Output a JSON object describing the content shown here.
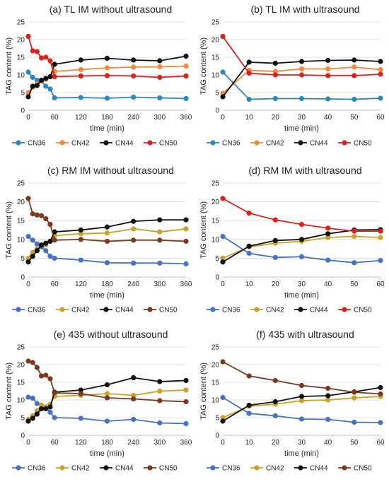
{
  "chart_data": [
    {
      "type": "line",
      "title": "(a) TL IM without ultrasound",
      "xlabel": "time (min)",
      "ylabel": "TAG content (%)",
      "xlim": [
        0,
        360
      ],
      "ylim": [
        0,
        25
      ],
      "xticks": [
        0,
        60,
        120,
        180,
        240,
        300,
        360
      ],
      "yticks": [
        0,
        5,
        10,
        15,
        20,
        25
      ],
      "grid": "horizontal",
      "legend": "bottom",
      "series": [
        {
          "name": "CN36",
          "color": "#2e86c1",
          "x": [
            0,
            10,
            20,
            30,
            40,
            50,
            60,
            120,
            180,
            240,
            300,
            360
          ],
          "y": [
            10.8,
            9.3,
            8.5,
            8.2,
            6.8,
            6.0,
            3.5,
            3.6,
            3.4,
            3.7,
            3.5,
            3.3
          ]
        },
        {
          "name": "CN42",
          "color": "#f2883a",
          "x": [
            0,
            10,
            20,
            30,
            40,
            50,
            60,
            120,
            180,
            240,
            300,
            360
          ],
          "y": [
            5.0,
            6.5,
            7.5,
            8.2,
            8.8,
            9.4,
            11.0,
            11.5,
            12.0,
            12.2,
            12.3,
            12.5
          ]
        },
        {
          "name": "CN44",
          "color": "#111111",
          "x": [
            0,
            10,
            20,
            30,
            40,
            50,
            60,
            120,
            180,
            240,
            300,
            360
          ],
          "y": [
            3.8,
            6.8,
            7.0,
            8.5,
            9.0,
            9.5,
            13.0,
            14.2,
            14.7,
            14.2,
            14.0,
            15.3
          ]
        },
        {
          "name": "CN50",
          "color": "#d9211e",
          "x": [
            0,
            10,
            20,
            30,
            40,
            50,
            60,
            120,
            180,
            240,
            300,
            360
          ],
          "y": [
            20.9,
            16.8,
            16.6,
            14.8,
            15.0,
            14.0,
            9.5,
            9.7,
            9.8,
            9.7,
            9.3,
            9.7
          ]
        }
      ]
    },
    {
      "type": "line",
      "title": "(b) TL IM with ultrasound",
      "xlabel": "time (min)",
      "ylabel": "TAG content (%)",
      "xlim": [
        0,
        60
      ],
      "ylim": [
        0,
        25
      ],
      "xticks": [
        0,
        10,
        20,
        30,
        40,
        50,
        60
      ],
      "yticks": [
        0,
        5,
        10,
        15,
        20,
        25
      ],
      "grid": "horizontal",
      "legend": "bottom",
      "series": [
        {
          "name": "CN36",
          "color": "#2e86c1",
          "x": [
            0,
            10,
            20,
            30,
            40,
            50,
            60
          ],
          "y": [
            10.8,
            3.1,
            3.3,
            3.3,
            3.2,
            3.1,
            3.4
          ]
        },
        {
          "name": "CN42",
          "color": "#f2883a",
          "x": [
            0,
            10,
            20,
            30,
            40,
            50,
            60
          ],
          "y": [
            4.8,
            11.3,
            11.0,
            11.7,
            11.7,
            12.2,
            11.5
          ]
        },
        {
          "name": "CN44",
          "color": "#111111",
          "x": [
            0,
            10,
            20,
            30,
            40,
            50,
            60
          ],
          "y": [
            3.8,
            13.6,
            13.3,
            13.8,
            14.1,
            14.2,
            13.8
          ]
        },
        {
          "name": "CN50",
          "color": "#d9211e",
          "x": [
            0,
            10,
            20,
            30,
            40,
            50,
            60
          ],
          "y": [
            20.9,
            10.5,
            10.0,
            10.0,
            9.8,
            9.8,
            10.2
          ]
        }
      ]
    },
    {
      "type": "line",
      "title": "(c) RM IM without ultrasound",
      "xlabel": "time (min)",
      "ylabel": "TAG content (%)",
      "xlim": [
        0,
        360
      ],
      "ylim": [
        0,
        25
      ],
      "xticks": [
        0,
        60,
        120,
        180,
        240,
        300,
        360
      ],
      "yticks": [
        0,
        5,
        10,
        15,
        20,
        25
      ],
      "grid": "horizontal",
      "legend": "bottom",
      "series": [
        {
          "name": "CN36",
          "color": "#4472c4",
          "x": [
            0,
            10,
            20,
            30,
            40,
            50,
            60,
            120,
            180,
            240,
            300,
            360
          ],
          "y": [
            10.8,
            9.8,
            8.8,
            8.0,
            7.0,
            5.5,
            5.0,
            4.5,
            3.8,
            3.7,
            3.7,
            3.5
          ]
        },
        {
          "name": "CN42",
          "color": "#c9a227",
          "x": [
            0,
            10,
            20,
            30,
            40,
            50,
            60,
            120,
            180,
            240,
            300,
            360
          ],
          "y": [
            5.0,
            6.5,
            7.5,
            8.5,
            8.5,
            9.5,
            11.0,
            11.5,
            11.7,
            12.8,
            12.0,
            12.8
          ]
        },
        {
          "name": "CN44",
          "color": "#111111",
          "x": [
            0,
            10,
            20,
            30,
            40,
            50,
            60,
            120,
            180,
            240,
            300,
            360
          ],
          "y": [
            4.0,
            5.5,
            7.0,
            8.5,
            9.0,
            9.5,
            12.0,
            12.5,
            13.3,
            14.8,
            15.2,
            15.2
          ]
        },
        {
          "name": "CN50",
          "color": "#7b3a1e",
          "x": [
            0,
            10,
            20,
            30,
            40,
            50,
            60,
            120,
            180,
            240,
            300,
            360
          ],
          "y": [
            20.9,
            16.8,
            16.5,
            16.3,
            15.5,
            14.0,
            9.8,
            10.0,
            9.5,
            9.8,
            9.8,
            9.5
          ]
        }
      ]
    },
    {
      "type": "line",
      "title": "(d) RM IM with ultrasound",
      "xlabel": "time (min)",
      "ylabel": "TAG content (%)",
      "xlim": [
        0,
        60
      ],
      "ylim": [
        0,
        25
      ],
      "xticks": [
        0,
        10,
        20,
        30,
        40,
        50,
        60
      ],
      "yticks": [
        0,
        5,
        10,
        15,
        20,
        25
      ],
      "grid": "horizontal",
      "legend": "bottom",
      "series": [
        {
          "name": "CN36",
          "color": "#4472c4",
          "x": [
            0,
            10,
            20,
            30,
            40,
            50,
            60
          ],
          "y": [
            10.8,
            6.3,
            5.2,
            5.4,
            4.5,
            3.8,
            4.4
          ]
        },
        {
          "name": "CN42",
          "color": "#c9a227",
          "x": [
            0,
            10,
            20,
            30,
            40,
            50,
            60
          ],
          "y": [
            5.0,
            8.0,
            9.0,
            9.5,
            10.5,
            10.8,
            10.5
          ]
        },
        {
          "name": "CN44",
          "color": "#111111",
          "x": [
            0,
            10,
            20,
            30,
            40,
            50,
            60
          ],
          "y": [
            4.0,
            8.2,
            9.7,
            10.0,
            11.5,
            12.5,
            12.6
          ]
        },
        {
          "name": "CN50",
          "color": "#d9211e",
          "x": [
            0,
            10,
            20,
            30,
            40,
            50,
            60
          ],
          "y": [
            20.9,
            17.0,
            15.2,
            14.0,
            13.0,
            12.2,
            12.2
          ]
        }
      ]
    },
    {
      "type": "line",
      "title": "(e) 435 without ultrasound",
      "xlabel": "time (min)",
      "ylabel": "TAG content (%)",
      "xlim": [
        0,
        360
      ],
      "ylim": [
        0,
        25
      ],
      "xticks": [
        0,
        60,
        120,
        180,
        240,
        300,
        360
      ],
      "yticks": [
        0,
        5,
        10,
        15,
        20,
        25
      ],
      "grid": "horizontal",
      "legend": "bottom",
      "series": [
        {
          "name": "CN36",
          "color": "#4472c4",
          "x": [
            0,
            10,
            20,
            30,
            40,
            50,
            60,
            120,
            180,
            240,
            300,
            360
          ],
          "y": [
            10.8,
            10.5,
            9.0,
            8.5,
            8.0,
            6.5,
            5.0,
            4.8,
            4.0,
            4.5,
            3.5,
            3.3
          ]
        },
        {
          "name": "CN42",
          "color": "#c9a227",
          "x": [
            0,
            10,
            20,
            30,
            40,
            50,
            60,
            120,
            180,
            240,
            300,
            360
          ],
          "y": [
            4.5,
            5.5,
            7.0,
            8.5,
            8.0,
            8.8,
            11.0,
            11.3,
            11.8,
            11.3,
            12.5,
            12.8
          ]
        },
        {
          "name": "CN44",
          "color": "#111111",
          "x": [
            0,
            10,
            20,
            30,
            40,
            50,
            60,
            120,
            180,
            240,
            300,
            360
          ],
          "y": [
            4.0,
            4.8,
            6.0,
            7.5,
            7.5,
            8.0,
            12.2,
            12.8,
            14.3,
            16.3,
            15.2,
            15.5
          ]
        },
        {
          "name": "CN50",
          "color": "#7b3a1e",
          "x": [
            0,
            10,
            20,
            30,
            40,
            50,
            60,
            120,
            180,
            240,
            300,
            360
          ],
          "y": [
            21.0,
            20.6,
            19.2,
            16.8,
            17.0,
            16.0,
            12.0,
            11.8,
            10.6,
            10.3,
            9.8,
            9.5
          ]
        }
      ]
    },
    {
      "type": "line",
      "title": "(f) 435 with ultrasound",
      "xlabel": "time (min)",
      "ylabel": "TAG content (%)",
      "xlim": [
        0,
        60
      ],
      "ylim": [
        0,
        25
      ],
      "xticks": [
        0,
        10,
        20,
        30,
        40,
        50,
        60
      ],
      "yticks": [
        0,
        5,
        10,
        15,
        20,
        25
      ],
      "grid": "horizontal",
      "legend": "bottom",
      "series": [
        {
          "name": "CN36",
          "color": "#4472c4",
          "x": [
            0,
            10,
            20,
            30,
            40,
            50,
            60
          ],
          "y": [
            10.7,
            6.2,
            5.5,
            4.6,
            4.5,
            3.7,
            3.6
          ]
        },
        {
          "name": "CN42",
          "color": "#c9a227",
          "x": [
            0,
            10,
            20,
            30,
            40,
            50,
            60
          ],
          "y": [
            5.0,
            8.2,
            8.8,
            9.8,
            10.0,
            10.6,
            11.0
          ]
        },
        {
          "name": "CN44",
          "color": "#111111",
          "x": [
            0,
            10,
            20,
            30,
            40,
            50,
            60
          ],
          "y": [
            4.0,
            8.5,
            9.5,
            11.0,
            11.2,
            12.3,
            13.5
          ]
        },
        {
          "name": "CN50",
          "color": "#7b3a1e",
          "x": [
            0,
            10,
            20,
            30,
            40,
            50,
            60
          ],
          "y": [
            20.8,
            16.8,
            15.5,
            14.1,
            13.3,
            12.2,
            11.7
          ]
        }
      ]
    }
  ]
}
